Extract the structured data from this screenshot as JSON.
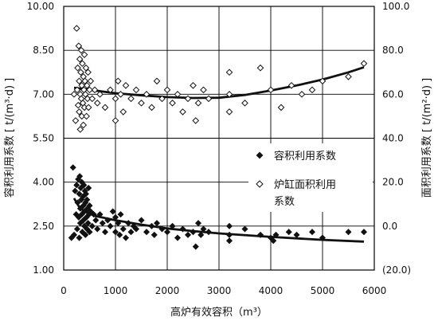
{
  "chart_data": {
    "type": "scatter",
    "title": "",
    "xlabel": "高炉有效容积（m³）",
    "ylabel_left": "容积利用系数 [ t/(m³·d) ]",
    "ylabel_right": "面积利用系数 [ t/(m²·d) ]",
    "xlim": [
      0,
      6000
    ],
    "ylim_left": [
      1.0,
      10.0
    ],
    "ylim_right": [
      -20.0,
      100.0
    ],
    "x_ticks": [
      "0",
      "1000",
      "2000",
      "3000",
      "4000",
      "5000",
      "6000"
    ],
    "y_ticks_left": [
      "1.00",
      "2.50",
      "4.00",
      "5.50",
      "7.00",
      "8.50",
      "10.00"
    ],
    "y_ticks_right": [
      "(20.0)",
      "0.0",
      "20.0",
      "40.0",
      "60.0",
      "80.0",
      "100.0"
    ],
    "grid": true,
    "legend_position": "right-middle",
    "legend": [
      {
        "label": "容积利用系数",
        "marker": "filled-diamond"
      },
      {
        "label": "炉缸面积利用\n系数",
        "marker": "open-diamond"
      }
    ],
    "series": [
      {
        "name": "容积利用系数",
        "axis": "left",
        "marker": "filled-diamond",
        "points": [
          [
            150,
            2.1
          ],
          [
            180,
            4.5
          ],
          [
            200,
            2.2
          ],
          [
            220,
            3.7
          ],
          [
            240,
            2.9
          ],
          [
            250,
            3.9
          ],
          [
            260,
            2.4
          ],
          [
            270,
            3.3
          ],
          [
            280,
            4.1
          ],
          [
            290,
            2.8
          ],
          [
            300,
            3.6
          ],
          [
            300,
            2.1
          ],
          [
            310,
            4.2
          ],
          [
            320,
            3.1
          ],
          [
            320,
            2.6
          ],
          [
            330,
            3.8
          ],
          [
            340,
            3.4
          ],
          [
            350,
            2.9
          ],
          [
            350,
            4.0
          ],
          [
            360,
            2.3
          ],
          [
            370,
            3.5
          ],
          [
            380,
            3.2
          ],
          [
            380,
            2.7
          ],
          [
            390,
            3.9
          ],
          [
            400,
            3.0
          ],
          [
            400,
            2.5
          ],
          [
            410,
            3.7
          ],
          [
            420,
            2.2
          ],
          [
            420,
            3.3
          ],
          [
            430,
            3.6
          ],
          [
            440,
            2.8
          ],
          [
            450,
            3.4
          ],
          [
            450,
            2.4
          ],
          [
            460,
            3.1
          ],
          [
            470,
            2.6
          ],
          [
            480,
            3.8
          ],
          [
            490,
            2.9
          ],
          [
            500,
            3.2
          ],
          [
            500,
            2.3
          ],
          [
            520,
            3.0
          ],
          [
            550,
            2.5
          ],
          [
            580,
            2.9
          ],
          [
            620,
            2.7
          ],
          [
            650,
            2.4
          ],
          [
            700,
            2.9
          ],
          [
            750,
            2.6
          ],
          [
            800,
            2.3
          ],
          [
            850,
            2.7
          ],
          [
            900,
            2.5
          ],
          [
            950,
            3.0
          ],
          [
            1000,
            2.8
          ],
          [
            1000,
            2.3
          ],
          [
            1050,
            2.6
          ],
          [
            1080,
            2.2
          ],
          [
            1100,
            2.9
          ],
          [
            1150,
            2.4
          ],
          [
            1200,
            2.1
          ],
          [
            1250,
            2.6
          ],
          [
            1300,
            2.3
          ],
          [
            1350,
            2.5
          ],
          [
            1400,
            2.4
          ],
          [
            1500,
            2.7
          ],
          [
            1600,
            2.3
          ],
          [
            1700,
            2.5
          ],
          [
            1750,
            2.2
          ],
          [
            1800,
            2.6
          ],
          [
            1900,
            2.4
          ],
          [
            2000,
            2.3
          ],
          [
            2100,
            2.5
          ],
          [
            2200,
            2.1
          ],
          [
            2300,
            2.4
          ],
          [
            2400,
            2.2
          ],
          [
            2500,
            2.3
          ],
          [
            2550,
            1.8
          ],
          [
            2600,
            2.6
          ],
          [
            2650,
            2.2
          ],
          [
            2700,
            2.4
          ],
          [
            2800,
            2.3
          ],
          [
            3200,
            2.5
          ],
          [
            3200,
            2.2
          ],
          [
            3200,
            2.0
          ],
          [
            3500,
            2.4
          ],
          [
            3800,
            2.2
          ],
          [
            4000,
            2.1
          ],
          [
            4050,
            2.0
          ],
          [
            4100,
            2.2
          ],
          [
            4350,
            2.3
          ],
          [
            4500,
            2.2
          ],
          [
            4800,
            2.3
          ],
          [
            5000,
            2.1
          ],
          [
            5500,
            2.3
          ],
          [
            5800,
            2.3
          ]
        ]
      },
      {
        "name": "炉缸面积利用系数",
        "axis": "right",
        "marker": "open-diamond",
        "points": [
          [
            200,
            60.0
          ],
          [
            230,
            48.0
          ],
          [
            250,
            90.0
          ],
          [
            260,
            62.0
          ],
          [
            270,
            72.0
          ],
          [
            280,
            55.0
          ],
          [
            290,
            82.0
          ],
          [
            300,
            66.0
          ],
          [
            300,
            52.0
          ],
          [
            310,
            76.0
          ],
          [
            320,
            60.0
          ],
          [
            320,
            44.0
          ],
          [
            330,
            70.0
          ],
          [
            340,
            58.0
          ],
          [
            340,
            80.0
          ],
          [
            350,
            64.0
          ],
          [
            350,
            50.0
          ],
          [
            360,
            74.0
          ],
          [
            370,
            56.0
          ],
          [
            380,
            68.0
          ],
          [
            380,
            46.0
          ],
          [
            390,
            62.0
          ],
          [
            400,
            78.0
          ],
          [
            400,
            54.0
          ],
          [
            410,
            66.0
          ],
          [
            420,
            60.0
          ],
          [
            430,
            72.0
          ],
          [
            440,
            50.0
          ],
          [
            450,
            64.0
          ],
          [
            460,
            58.0
          ],
          [
            470,
            70.0
          ],
          [
            480,
            54.0
          ],
          [
            500,
            62.0
          ],
          [
            520,
            66.0
          ],
          [
            550,
            58.0
          ],
          [
            600,
            62.0
          ],
          [
            650,
            56.0
          ],
          [
            700,
            60.0
          ],
          [
            800,
            54.0
          ],
          [
            900,
            62.0
          ],
          [
            1000,
            58.0
          ],
          [
            1000,
            48.0
          ],
          [
            1050,
            66.0
          ],
          [
            1100,
            60.0
          ],
          [
            1150,
            52.0
          ],
          [
            1200,
            64.0
          ],
          [
            1300,
            58.0
          ],
          [
            1400,
            62.0
          ],
          [
            1500,
            56.0
          ],
          [
            1600,
            60.0
          ],
          [
            1700,
            54.0
          ],
          [
            1800,
            66.0
          ],
          [
            1900,
            58.0
          ],
          [
            2000,
            62.0
          ],
          [
            2100,
            56.0
          ],
          [
            2200,
            60.0
          ],
          [
            2300,
            52.0
          ],
          [
            2400,
            58.0
          ],
          [
            2500,
            64.0
          ],
          [
            2550,
            48.0
          ],
          [
            2600,
            56.0
          ],
          [
            2700,
            62.0
          ],
          [
            2800,
            58.0
          ],
          [
            3200,
            70.0
          ],
          [
            3200,
            60.0
          ],
          [
            3200,
            52.0
          ],
          [
            3500,
            56.0
          ],
          [
            3800,
            72.0
          ],
          [
            4000,
            62.0
          ],
          [
            4200,
            54.0
          ],
          [
            4400,
            64.0
          ],
          [
            4600,
            60.0
          ],
          [
            4800,
            62.0
          ],
          [
            5000,
            66.0
          ],
          [
            5500,
            68.0
          ],
          [
            5800,
            74.0
          ]
        ]
      }
    ],
    "trend_lines": [
      {
        "axis": "left",
        "points": [
          [
            200,
            3.45
          ],
          [
            300,
            3.15
          ],
          [
            400,
            3.0
          ],
          [
            600,
            2.85
          ],
          [
            1000,
            2.7
          ],
          [
            1500,
            2.55
          ],
          [
            2000,
            2.42
          ],
          [
            2500,
            2.33
          ],
          [
            3000,
            2.25
          ],
          [
            4000,
            2.13
          ],
          [
            5000,
            2.03
          ],
          [
            5800,
            1.97
          ]
        ]
      },
      {
        "axis": "right",
        "points": [
          [
            200,
            63.0
          ],
          [
            500,
            62.0
          ],
          [
            1000,
            60.5
          ],
          [
            1500,
            59.5
          ],
          [
            2000,
            58.7
          ],
          [
            2500,
            58.3
          ],
          [
            3000,
            58.4
          ],
          [
            3500,
            59.7
          ],
          [
            4000,
            61.7
          ],
          [
            4500,
            64.0
          ],
          [
            5000,
            66.7
          ],
          [
            5500,
            70.0
          ],
          [
            5800,
            72.3
          ]
        ]
      }
    ]
  }
}
